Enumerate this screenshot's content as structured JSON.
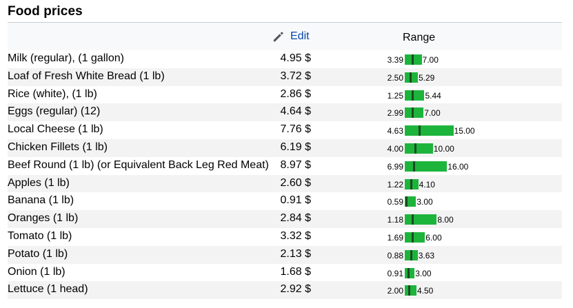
{
  "title": "Food prices",
  "edit_label": "Edit",
  "range_label": "Range",
  "icons": {
    "edit": "pencil-icon"
  },
  "colors": {
    "bar": "#1db43c",
    "marker": "#1b4a22",
    "link": "#0645ad"
  },
  "rows": [
    {
      "name": "Milk (regular), (1 gallon)",
      "price": "4.95 $",
      "min": "3.39",
      "max": "7.00",
      "avg": 4.95,
      "lo": 3.39,
      "hi": 7.0
    },
    {
      "name": "Loaf of Fresh White Bread (1 lb)",
      "price": "3.72 $",
      "min": "2.50",
      "max": "5.29",
      "avg": 3.72,
      "lo": 2.5,
      "hi": 5.29
    },
    {
      "name": "Rice (white), (1 lb)",
      "price": "2.86 $",
      "min": "1.25",
      "max": "5.44",
      "avg": 2.86,
      "lo": 1.25,
      "hi": 5.44
    },
    {
      "name": "Eggs (regular) (12)",
      "price": "4.64 $",
      "min": "2.99",
      "max": "7.00",
      "avg": 4.64,
      "lo": 2.99,
      "hi": 7.0
    },
    {
      "name": "Local Cheese (1 lb)",
      "price": "7.76 $",
      "min": "4.63",
      "max": "15.00",
      "avg": 7.76,
      "lo": 4.63,
      "hi": 15.0
    },
    {
      "name": "Chicken Fillets (1 lb)",
      "price": "6.19 $",
      "min": "4.00",
      "max": "10.00",
      "avg": 6.19,
      "lo": 4.0,
      "hi": 10.0
    },
    {
      "name": "Beef Round (1 lb) (or Equivalent Back Leg Red Meat)",
      "price": "8.97 $",
      "min": "6.99",
      "max": "16.00",
      "avg": 8.97,
      "lo": 6.99,
      "hi": 16.0
    },
    {
      "name": "Apples (1 lb)",
      "price": "2.60 $",
      "min": "1.22",
      "max": "4.10",
      "avg": 2.6,
      "lo": 1.22,
      "hi": 4.1
    },
    {
      "name": "Banana (1 lb)",
      "price": "0.91 $",
      "min": "0.59",
      "max": "3.00",
      "avg": 0.91,
      "lo": 0.59,
      "hi": 3.0
    },
    {
      "name": "Oranges (1 lb)",
      "price": "2.84 $",
      "min": "1.18",
      "max": "8.00",
      "avg": 2.84,
      "lo": 1.18,
      "hi": 8.0
    },
    {
      "name": "Tomato (1 lb)",
      "price": "3.32 $",
      "min": "1.69",
      "max": "6.00",
      "avg": 3.32,
      "lo": 1.69,
      "hi": 6.0
    },
    {
      "name": "Potato (1 lb)",
      "price": "2.13 $",
      "min": "0.88",
      "max": "3.63",
      "avg": 2.13,
      "lo": 0.88,
      "hi": 3.63
    },
    {
      "name": "Onion (1 lb)",
      "price": "1.68 $",
      "min": "0.91",
      "max": "3.00",
      "avg": 1.68,
      "lo": 0.91,
      "hi": 3.0
    },
    {
      "name": "Lettuce (1 head)",
      "price": "2.92 $",
      "min": "2.00",
      "max": "4.50",
      "avg": 2.92,
      "lo": 2.0,
      "hi": 4.5
    }
  ]
}
